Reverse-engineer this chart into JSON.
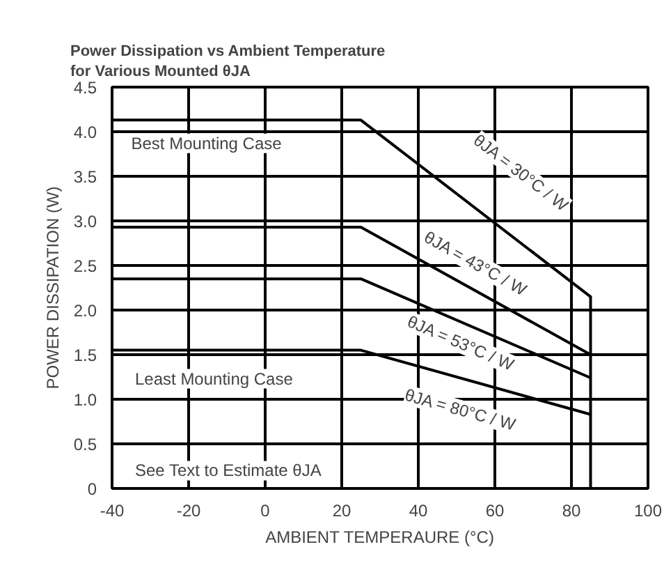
{
  "chart_data": {
    "type": "line",
    "title": "Power Dissipation vs Ambient Temperature\nfor Various Mounted θJA",
    "xlabel": "AMBIENT TEMPERAURE (°C)",
    "ylabel": "POWER DISSIPATION (W)",
    "series": [
      {
        "name": "θJA = 30°C / W",
        "color": "#000000",
        "x": [
          -40,
          25,
          85,
          85
        ],
        "values": [
          4.13,
          4.13,
          2.15,
          0
        ]
      },
      {
        "name": "θJA = 43°C / W",
        "color": "#000000",
        "x": [
          -40,
          25,
          85
        ],
        "values": [
          2.93,
          2.93,
          1.5
        ]
      },
      {
        "name": "θJA = 53°C / W",
        "color": "#000000",
        "x": [
          -40,
          25,
          85
        ],
        "values": [
          2.35,
          2.35,
          1.24
        ]
      },
      {
        "name": "θJA = 80°C / W",
        "color": "#000000",
        "x": [
          -40,
          25,
          85
        ],
        "values": [
          1.55,
          1.55,
          0.83
        ]
      }
    ],
    "annotations": [
      "Best Mounting Case",
      "Least Mounting Case",
      "See Text to Estimate θJA"
    ],
    "xlim": [
      -40,
      100
    ],
    "xticks": [
      -40,
      -20,
      0,
      20,
      40,
      60,
      80,
      100
    ],
    "ylim": [
      0,
      4.5
    ],
    "yticks": [
      0,
      {
        "value": 0.5,
        "label": "0.5"
      },
      {
        "value": 1,
        "label": "1.0"
      },
      {
        "value": 1.5,
        "label": "1.5"
      },
      {
        "value": 2,
        "label": "2.0"
      },
      {
        "value": 2.5,
        "label": "2.5"
      },
      {
        "value": 3,
        "label": "3.0"
      },
      {
        "value": 3.5,
        "label": "3.5"
      },
      {
        "value": 4,
        "label": "4.0"
      },
      {
        "value": 4.5,
        "label": "4.5"
      }
    ],
    "grid": true,
    "marker": "none",
    "line_style": "solid"
  }
}
